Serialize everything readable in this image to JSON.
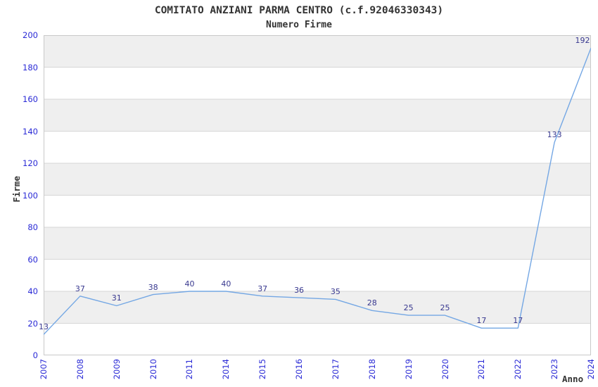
{
  "chart_data": {
    "type": "line",
    "title": "COMITATO ANZIANI PARMA CENTRO (c.f.92046330343)",
    "subtitle": "Numero Firme",
    "xlabel": "Anno",
    "ylabel": "Firme",
    "categories": [
      "2007",
      "2008",
      "2009",
      "2010",
      "2011",
      "2014",
      "2015",
      "2016",
      "2017",
      "2018",
      "2019",
      "2020",
      "2021",
      "2022",
      "2023",
      "2024"
    ],
    "values": [
      13,
      37,
      31,
      38,
      40,
      40,
      37,
      36,
      35,
      28,
      25,
      25,
      17,
      17,
      133,
      192
    ],
    "ylim": [
      0,
      200
    ],
    "ytick_step": 20,
    "grid": "horizontal",
    "banded_background": true,
    "legend": "none",
    "data_labels": true,
    "colors": {
      "line": "#74a7e4",
      "tick_labels": "#2a2ad6",
      "data_labels": "#38388f",
      "band_gray": "#efefef",
      "band_white": "#ffffff",
      "gridline": "#d6d6d6",
      "plot_border": "#c9c9c9",
      "title_text": "#333333"
    }
  }
}
